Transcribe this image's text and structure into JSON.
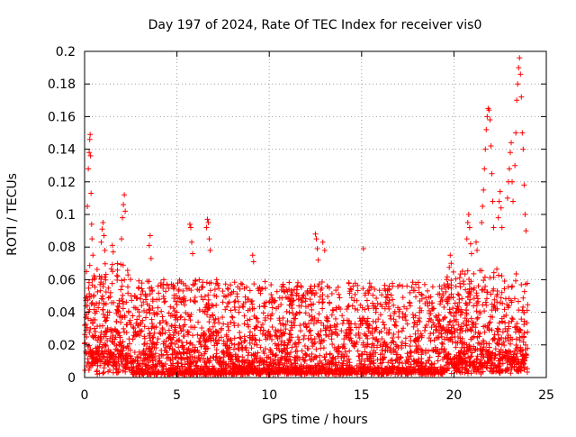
{
  "chart_data": {
    "type": "scatter",
    "title": "Day 197 of 2024, Rate Of TEC Index for receiver vis0",
    "xlabel": "GPS time / hours",
    "ylabel": "ROTI / TECUs",
    "xlim": [
      0,
      25
    ],
    "ylim": [
      0,
      0.2
    ],
    "x_ticks": [
      0,
      5,
      10,
      15,
      20,
      25
    ],
    "y_ticks": [
      0,
      0.02,
      0.04,
      0.06,
      0.08,
      0.1,
      0.12,
      0.14,
      0.16,
      0.18,
      0.2
    ],
    "x_tick_labels": [
      "0",
      "5",
      "10",
      "15",
      "20",
      "25"
    ],
    "y_tick_labels": [
      "0",
      "0.02",
      "0.04",
      "0.06",
      "0.08",
      "0.1",
      "0.12",
      "0.14",
      "0.16",
      "0.18",
      "0.2"
    ],
    "grid": true,
    "legend": "none",
    "marker": "plus",
    "marker_color": "#ff0000",
    "data_span_hours": [
      0,
      24
    ],
    "background_band": [
      0.002,
      0.06
    ],
    "series": [
      {
        "points": [
          [
            0.1,
            0.065
          ],
          [
            0.15,
            0.105
          ],
          [
            0.2,
            0.128
          ],
          [
            0.25,
            0.138
          ],
          [
            0.28,
            0.146
          ],
          [
            0.3,
            0.149
          ],
          [
            0.32,
            0.136
          ],
          [
            0.35,
            0.113
          ],
          [
            0.38,
            0.094
          ],
          [
            0.4,
            0.085
          ],
          [
            0.45,
            0.075
          ],
          [
            0.9,
            0.083
          ],
          [
            0.95,
            0.091
          ],
          [
            1.0,
            0.095
          ],
          [
            1.05,
            0.087
          ],
          [
            1.1,
            0.078
          ],
          [
            1.5,
            0.081
          ],
          [
            1.55,
            0.077
          ],
          [
            2.0,
            0.085
          ],
          [
            2.05,
            0.098
          ],
          [
            2.1,
            0.106
          ],
          [
            2.15,
            0.112
          ],
          [
            2.2,
            0.102
          ],
          [
            3.5,
            0.081
          ],
          [
            3.55,
            0.087
          ],
          [
            3.6,
            0.073
          ],
          [
            5.7,
            0.094
          ],
          [
            5.75,
            0.092
          ],
          [
            5.8,
            0.083
          ],
          [
            5.85,
            0.076
          ],
          [
            6.6,
            0.092
          ],
          [
            6.65,
            0.097
          ],
          [
            6.7,
            0.095
          ],
          [
            6.75,
            0.085
          ],
          [
            6.8,
            0.078
          ],
          [
            9.1,
            0.075
          ],
          [
            9.15,
            0.071
          ],
          [
            12.5,
            0.088
          ],
          [
            12.55,
            0.085
          ],
          [
            12.6,
            0.079
          ],
          [
            12.65,
            0.072
          ],
          [
            12.9,
            0.083
          ],
          [
            13.0,
            0.078
          ],
          [
            15.1,
            0.079
          ],
          [
            19.8,
            0.075
          ],
          [
            19.85,
            0.07
          ],
          [
            20.7,
            0.085
          ],
          [
            20.75,
            0.095
          ],
          [
            20.8,
            0.1
          ],
          [
            20.85,
            0.092
          ],
          [
            20.9,
            0.082
          ],
          [
            20.95,
            0.076
          ],
          [
            21.2,
            0.083
          ],
          [
            21.25,
            0.078
          ],
          [
            21.5,
            0.095
          ],
          [
            21.55,
            0.105
          ],
          [
            21.6,
            0.115
          ],
          [
            21.65,
            0.128
          ],
          [
            21.7,
            0.14
          ],
          [
            21.75,
            0.152
          ],
          [
            21.8,
            0.16
          ],
          [
            21.85,
            0.165
          ],
          [
            21.9,
            0.164
          ],
          [
            21.95,
            0.158
          ],
          [
            22.0,
            0.142
          ],
          [
            22.05,
            0.125
          ],
          [
            22.1,
            0.108
          ],
          [
            22.15,
            0.092
          ],
          [
            22.4,
            0.098
          ],
          [
            22.45,
            0.108
          ],
          [
            22.5,
            0.114
          ],
          [
            22.55,
            0.104
          ],
          [
            22.6,
            0.092
          ],
          [
            22.9,
            0.11
          ],
          [
            22.95,
            0.12
          ],
          [
            23.0,
            0.128
          ],
          [
            23.05,
            0.138
          ],
          [
            23.1,
            0.144
          ],
          [
            23.15,
            0.12
          ],
          [
            23.2,
            0.108
          ],
          [
            23.3,
            0.13
          ],
          [
            23.35,
            0.15
          ],
          [
            23.4,
            0.17
          ],
          [
            23.45,
            0.18
          ],
          [
            23.5,
            0.19
          ],
          [
            23.55,
            0.196
          ],
          [
            23.6,
            0.186
          ],
          [
            23.65,
            0.172
          ],
          [
            23.7,
            0.15
          ],
          [
            23.75,
            0.14
          ],
          [
            23.8,
            0.118
          ],
          [
            23.85,
            0.1
          ],
          [
            23.9,
            0.09
          ]
        ]
      }
    ]
  }
}
